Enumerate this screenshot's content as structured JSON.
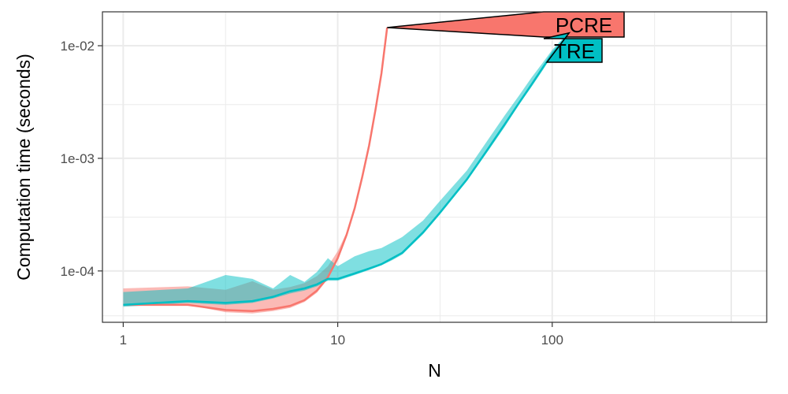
{
  "chart_data": {
    "type": "line",
    "title": "",
    "xlabel": "N",
    "ylabel": "Computation time (seconds)",
    "x_scale": "log10",
    "y_scale": "log10",
    "xlim": [
      0.8,
      1000
    ],
    "ylim": [
      3.5e-05,
      0.02
    ],
    "grid": true,
    "legend": "direct labels at end of lines",
    "x_ticks": [
      {
        "value": 1,
        "label": "1"
      },
      {
        "value": 10,
        "label": "10"
      },
      {
        "value": 100,
        "label": "100"
      }
    ],
    "y_ticks": [
      {
        "value": 0.0001,
        "label": "1e-04"
      },
      {
        "value": 0.001,
        "label": "1e-03"
      },
      {
        "value": 0.01,
        "label": "1e-02"
      }
    ],
    "series": [
      {
        "name": "PCRE",
        "color": "#F8766D",
        "x": [
          1,
          2,
          3,
          4,
          5,
          6,
          7,
          8,
          9,
          10,
          11,
          12,
          13,
          14,
          15,
          16,
          17
        ],
        "median": [
          5e-05,
          5e-05,
          4.5e-05,
          4.4e-05,
          4.6e-05,
          4.9e-05,
          5.5e-05,
          6.7e-05,
          8.8e-05,
          0.00013,
          0.00021,
          0.00036,
          0.00068,
          0.0013,
          0.0027,
          0.0057,
          0.0145
        ],
        "lower": [
          5e-05,
          5e-05,
          4.3e-05,
          4.2e-05,
          4.4e-05,
          4.7e-05,
          5.3e-05,
          6.4e-05,
          8.5e-05,
          0.000125,
          0.0002,
          0.00035,
          0.00066,
          0.00127,
          0.0026,
          0.0055,
          0.014
        ],
        "upper": [
          7e-05,
          7.3e-05,
          6.8e-05,
          8.1e-05,
          6.8e-05,
          7.2e-05,
          7.8e-05,
          9e-05,
          0.00011,
          0.00015,
          0.00022,
          0.00037,
          0.0007,
          0.00133,
          0.0028,
          0.0059,
          0.015
        ]
      },
      {
        "name": "TRE",
        "color": "#00BFC4",
        "x": [
          1,
          2,
          3,
          4,
          5,
          6,
          7,
          8,
          9,
          10,
          12,
          14,
          16,
          18,
          20,
          25,
          30,
          40,
          50,
          60,
          70,
          80,
          90,
          100,
          110,
          120
        ],
        "median": [
          5e-05,
          5.4e-05,
          5.2e-05,
          5.4e-05,
          5.9e-05,
          6.6e-05,
          7e-05,
          7.6e-05,
          8.5e-05,
          8.5e-05,
          9.5e-05,
          0.000105,
          0.000115,
          0.00013,
          0.000145,
          0.00022,
          0.00033,
          0.00065,
          0.0012,
          0.002,
          0.0031,
          0.0045,
          0.0063,
          0.0085,
          0.0105,
          0.013
        ],
        "lower": [
          4.8e-05,
          5.2e-05,
          5e-05,
          5.2e-05,
          5.7e-05,
          6.3e-05,
          6.7e-05,
          7.3e-05,
          8.2e-05,
          8.2e-05,
          9.2e-05,
          0.000102,
          0.000112,
          0.000125,
          0.00014,
          0.000212,
          0.00032,
          0.00063,
          0.00115,
          0.0019,
          0.003,
          0.0043,
          0.006,
          0.0082,
          0.0102,
          0.0127
        ],
        "upper": [
          6.5e-05,
          7e-05,
          9.2e-05,
          8.5e-05,
          7e-05,
          9.2e-05,
          8e-05,
          9.8e-05,
          0.00013,
          0.00011,
          0.000135,
          0.00015,
          0.00016,
          0.00018,
          0.0002,
          0.00028,
          0.00042,
          0.00078,
          0.00145,
          0.0024,
          0.0036,
          0.0052,
          0.007,
          0.0092,
          0.0112,
          0.0135
        ]
      }
    ]
  },
  "colors": {
    "panel_border": "#333333",
    "grid": "#ebebeb",
    "tick_label": "#4d4d4d"
  }
}
